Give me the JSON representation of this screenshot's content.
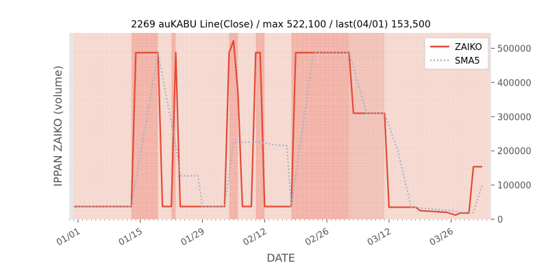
{
  "chart_data": {
    "type": "line",
    "title": "2269 auKABU Line(Close) / max 522,100 / last(04/01) 153,500",
    "xlabel": "DATE",
    "ylabel": "IPPAN ZAIKO (volume)",
    "ylim": [
      0,
      545000
    ],
    "xlim": [
      "2021-12-30",
      "2022-04-04"
    ],
    "yticks": [
      0,
      100000,
      200000,
      300000,
      400000,
      500000
    ],
    "ytick_labels": [
      "0",
      "100000",
      "200000",
      "300000",
      "400000",
      "500000"
    ],
    "xticks": [
      "2022-01-01",
      "2022-01-15",
      "2022-01-29",
      "2022-02-12",
      "2022-02-26",
      "2022-03-12",
      "2022-03-26"
    ],
    "xtick_labels": [
      "01/01",
      "01/15",
      "01/29",
      "02/12",
      "02/26",
      "03/12",
      "03/26"
    ],
    "grid": true,
    "legend": "top-right",
    "series": [
      {
        "name": "ZAIKO",
        "color": "#e24a33",
        "style": "solid",
        "points": [
          [
            "2021-12-31",
            37000
          ],
          [
            "2022-01-13",
            37000
          ],
          [
            "2022-01-14",
            487000
          ],
          [
            "2022-01-19",
            487000
          ],
          [
            "2022-01-20",
            37000
          ],
          [
            "2022-01-22",
            37000
          ],
          [
            "2022-01-23",
            487000
          ],
          [
            "2022-01-24",
            37000
          ],
          [
            "2022-01-27",
            37000
          ],
          [
            "2022-02-03",
            37000
          ],
          [
            "2022-02-04",
            487000
          ],
          [
            "2022-02-05",
            522100
          ],
          [
            "2022-02-06",
            370000
          ],
          [
            "2022-02-07",
            37000
          ],
          [
            "2022-02-09",
            37000
          ],
          [
            "2022-02-10",
            487000
          ],
          [
            "2022-02-11",
            487000
          ],
          [
            "2022-02-12",
            37000
          ],
          [
            "2022-02-18",
            37000
          ],
          [
            "2022-02-19",
            487000
          ],
          [
            "2022-03-03",
            487000
          ],
          [
            "2022-03-04",
            310000
          ],
          [
            "2022-03-11",
            310000
          ],
          [
            "2022-03-12",
            35000
          ],
          [
            "2022-03-18",
            35000
          ],
          [
            "2022-03-19",
            25000
          ],
          [
            "2022-03-25",
            20000
          ],
          [
            "2022-03-27",
            12000
          ],
          [
            "2022-03-28",
            18000
          ],
          [
            "2022-03-30",
            18000
          ],
          [
            "2022-03-31",
            153500
          ],
          [
            "2022-04-02",
            153500
          ]
        ]
      },
      {
        "name": "SMA5",
        "color": "#9db3c8",
        "style": "dotted",
        "points": [
          [
            "2021-12-31",
            37000
          ],
          [
            "2022-01-13",
            37000
          ],
          [
            "2022-01-19",
            487000
          ],
          [
            "2022-01-23",
            215000
          ],
          [
            "2022-01-24",
            127000
          ],
          [
            "2022-01-28",
            127000
          ],
          [
            "2022-01-29",
            37000
          ],
          [
            "2022-02-03",
            37000
          ],
          [
            "2022-02-05",
            225000
          ],
          [
            "2022-02-11",
            225000
          ],
          [
            "2022-02-14",
            218000
          ],
          [
            "2022-02-17",
            215000
          ],
          [
            "2022-02-18",
            37000
          ],
          [
            "2022-02-23",
            487000
          ],
          [
            "2022-03-03",
            487000
          ],
          [
            "2022-03-07",
            310000
          ],
          [
            "2022-03-11",
            310000
          ],
          [
            "2022-03-14",
            200000
          ],
          [
            "2022-03-17",
            35000
          ],
          [
            "2022-03-26",
            25000
          ],
          [
            "2022-03-28",
            20000
          ],
          [
            "2022-03-31",
            20000
          ],
          [
            "2022-04-02",
            100000
          ]
        ]
      }
    ],
    "shading": {
      "base_color": "#f5d9d0",
      "bands": [
        {
          "from": "2022-01-13",
          "to": "2022-01-19",
          "color": "#f2b3a8"
        },
        {
          "from": "2022-01-22",
          "to": "2022-01-23",
          "color": "#f2b3a8"
        },
        {
          "from": "2022-02-04",
          "to": "2022-02-06",
          "color": "#f2b3a8"
        },
        {
          "from": "2022-02-10",
          "to": "2022-02-12",
          "color": "#f2b3a8"
        },
        {
          "from": "2022-02-18",
          "to": "2022-03-03",
          "color": "#f2b3a8"
        },
        {
          "from": "2022-03-03",
          "to": "2022-03-11",
          "color": "#f0c2b8"
        }
      ]
    }
  }
}
